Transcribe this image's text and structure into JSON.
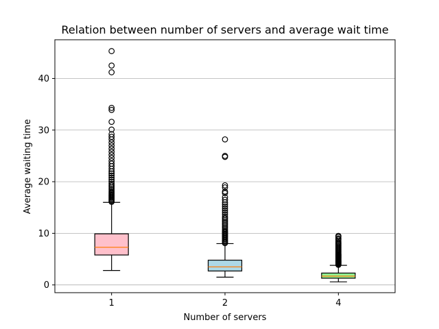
{
  "chart_data": {
    "type": "box",
    "title": "Relation between number of servers and average wait time",
    "xlabel": "Number of servers",
    "ylabel": "Average waiting time",
    "ylim": [
      -1.5,
      47.5
    ],
    "yticks": [
      0,
      10,
      20,
      30,
      40
    ],
    "grid": "y",
    "categories": [
      "1",
      "2",
      "4"
    ],
    "boxes": [
      {
        "category": "1",
        "whisker_low": 2.8,
        "q1": 5.8,
        "median": 7.3,
        "q3": 9.9,
        "whisker_high": 16.0,
        "fill": "#ffc0cb",
        "outliers": [
          16.1,
          16.3,
          16.5,
          16.7,
          16.9,
          17.1,
          17.3,
          17.5,
          17.7,
          17.9,
          18.1,
          18.4,
          18.7,
          19.0,
          19.3,
          19.6,
          20.0,
          20.4,
          20.8,
          21.2,
          21.6,
          22.0,
          22.5,
          23.0,
          23.5,
          24.0,
          24.6,
          25.2,
          25.8,
          26.4,
          27.0,
          27.6,
          28.2,
          28.7,
          29.2,
          30.1,
          31.6,
          33.9,
          34.3,
          41.2,
          42.5,
          45.3
        ]
      },
      {
        "category": "2",
        "whisker_low": 1.5,
        "q1": 2.7,
        "median": 3.5,
        "q3": 4.8,
        "whisker_high": 8.0,
        "fill": "#add8e6",
        "outliers": [
          8.1,
          8.3,
          8.5,
          8.7,
          8.9,
          9.1,
          9.3,
          9.5,
          9.7,
          9.9,
          10.1,
          10.3,
          10.5,
          10.8,
          11.1,
          11.4,
          11.7,
          12.0,
          12.3,
          12.6,
          12.9,
          13.2,
          13.6,
          14.0,
          14.4,
          14.8,
          15.2,
          15.6,
          16.0,
          16.5,
          17.0,
          17.8,
          18.1,
          18.9,
          19.3,
          24.8,
          25.0,
          28.2
        ]
      },
      {
        "category": "4",
        "whisker_low": 0.6,
        "q1": 1.3,
        "median": 1.7,
        "q3": 2.3,
        "whisker_high": 3.8,
        "fill": "#90ee90",
        "outliers": [
          3.9,
          4.0,
          4.1,
          4.2,
          4.3,
          4.4,
          4.5,
          4.6,
          4.7,
          4.8,
          4.9,
          5.0,
          5.1,
          5.2,
          5.3,
          5.4,
          5.5,
          5.6,
          5.7,
          5.8,
          5.9,
          6.0,
          6.2,
          6.4,
          6.6,
          6.8,
          7.0,
          7.2,
          7.4,
          7.6,
          7.8,
          8.0,
          8.2,
          8.5,
          8.8,
          9.0,
          9.3,
          9.5
        ]
      }
    ],
    "colors": {
      "median": "#ff7f0e",
      "grid": "#b0b0b0",
      "outline": "#000000"
    }
  }
}
